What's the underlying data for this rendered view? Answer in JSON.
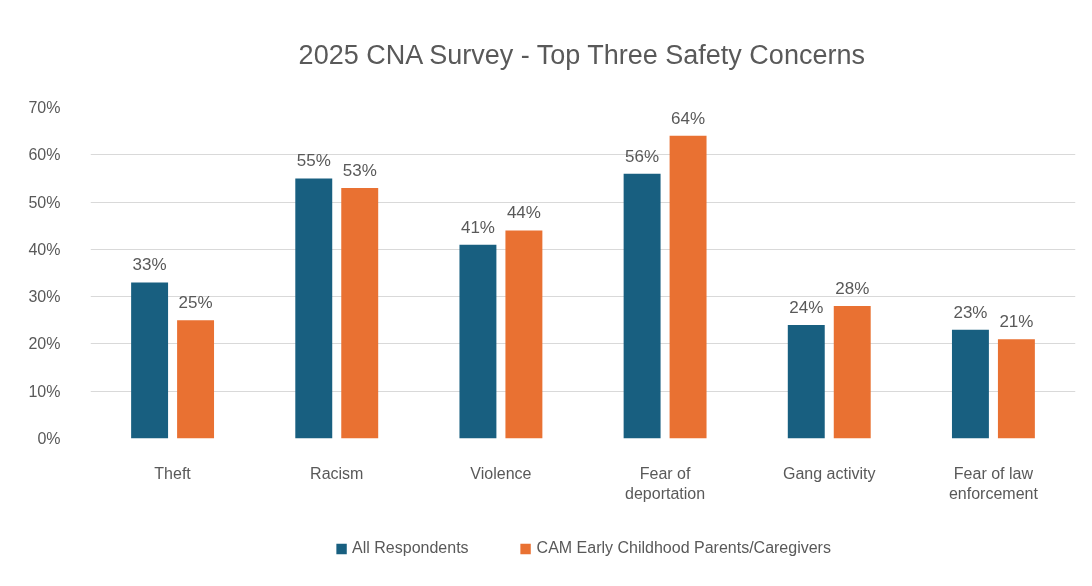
{
  "chart_data": {
    "type": "bar",
    "title": "2025 CNA Survey - Top Three Safety Concerns",
    "categories": [
      "Theft",
      "Racism",
      "Violence",
      "Fear of deportation",
      "Gang activity",
      "Fear of law enforcement"
    ],
    "series": [
      {
        "name": "All Respondents",
        "color": "#185f80",
        "values": [
          33,
          55,
          41,
          56,
          24,
          23
        ],
        "value_labels": [
          "33%",
          "55%",
          "41%",
          "56%",
          "24%",
          "23%"
        ]
      },
      {
        "name": "CAM Early Childhood Parents/Caregivers",
        "color": "#e97132",
        "values": [
          25,
          53,
          44,
          64,
          28,
          21
        ],
        "value_labels": [
          "25%",
          "53%",
          "44%",
          "64%",
          "28%",
          "21%"
        ]
      }
    ],
    "ylim": [
      0,
      70
    ],
    "yticks": [
      {
        "value": 0,
        "label": "0%"
      },
      {
        "value": 10,
        "label": "10%"
      },
      {
        "value": 20,
        "label": "20%"
      },
      {
        "value": 30,
        "label": "30%"
      },
      {
        "value": 40,
        "label": "40%"
      },
      {
        "value": 50,
        "label": "50%"
      },
      {
        "value": 60,
        "label": "60%"
      },
      {
        "value": 70,
        "label": "70%"
      }
    ],
    "grid": "y",
    "legend": "bottom"
  }
}
